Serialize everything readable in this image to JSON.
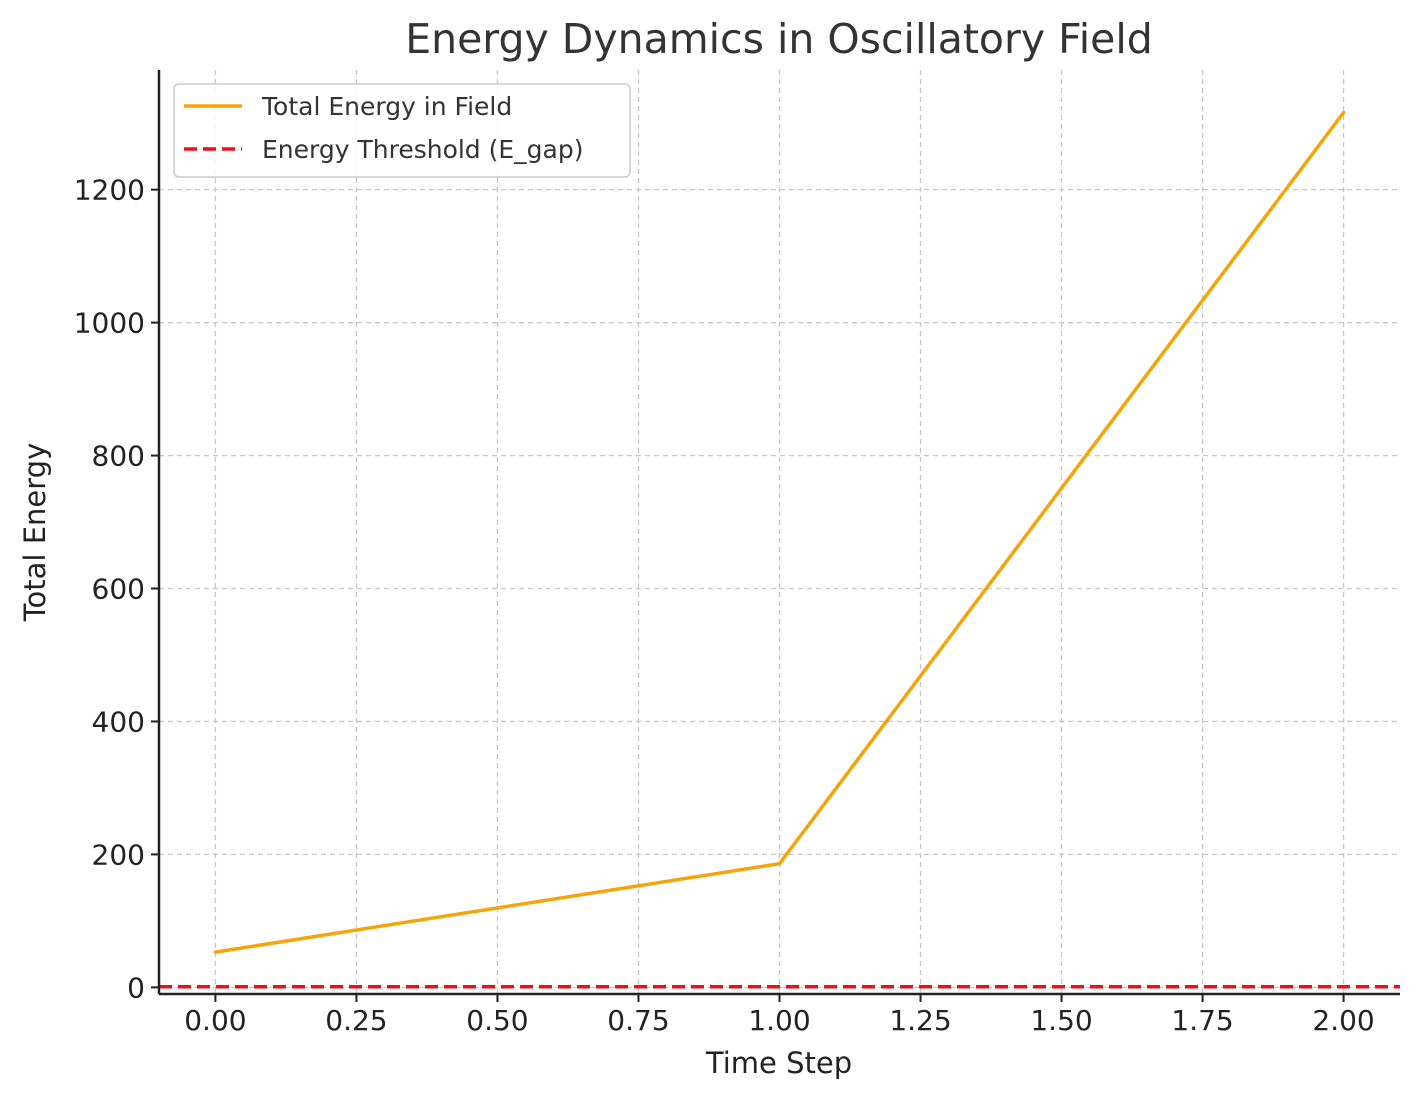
{
  "chart_data": {
    "type": "line",
    "title": "Energy Dynamics in Oscillatory Field",
    "xlabel": "Time Step",
    "ylabel": "Total Energy",
    "xlim": [
      -0.1,
      2.1
    ],
    "ylim": [
      -10,
      1380
    ],
    "xticks": [
      0.0,
      0.25,
      0.5,
      0.75,
      1.0,
      1.25,
      1.5,
      1.75,
      2.0
    ],
    "xtick_labels": [
      "0.00",
      "0.25",
      "0.50",
      "0.75",
      "1.00",
      "1.25",
      "1.50",
      "1.75",
      "2.00"
    ],
    "yticks": [
      0,
      200,
      400,
      600,
      800,
      1000,
      1200
    ],
    "ytick_labels": [
      "0",
      "200",
      "400",
      "600",
      "800",
      "1000",
      "1200"
    ],
    "grid": true,
    "legend_position": "top-left",
    "series": [
      {
        "name": "Total Energy in Field",
        "color": "#f5a50a",
        "style": "solid",
        "x": [
          0,
          1,
          2
        ],
        "y": [
          53,
          186,
          1316
        ]
      },
      {
        "name": "Energy Threshold (E_gap)",
        "color": "#e8101a",
        "style": "dashed",
        "y_constant": 1
      }
    ]
  }
}
